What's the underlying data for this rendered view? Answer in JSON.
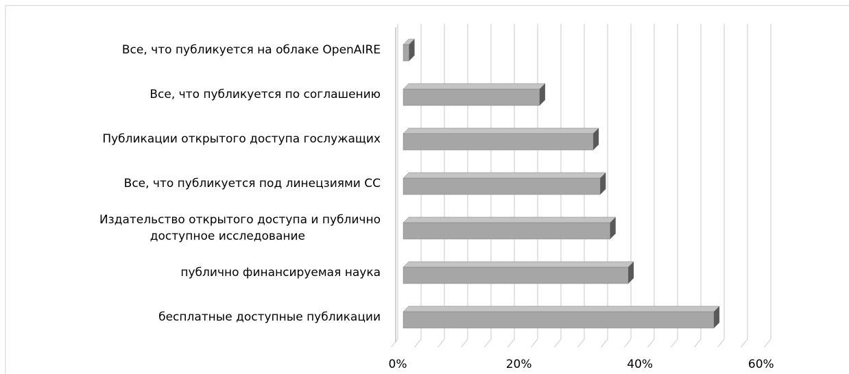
{
  "chart_data": {
    "type": "bar",
    "orientation": "horizontal",
    "categories": [
      "Все, что публикуется на облаке OpenAIRE",
      "Все,  что публикуется по соглашению",
      "Публикации  открытого доступа гослужащих",
      "Все, что публикуется под линецзиями СС",
      "Издательство открытого доступа и публично\nдоступное исследование",
      "публично финансируемая наука",
      "бесплатные доступные публикации"
    ],
    "values": [
      1,
      23.4,
      32.6,
      33.8,
      35.5,
      38.6,
      53.3
    ],
    "color": "#a6a6a6",
    "xlim": [
      0,
      64
    ],
    "xticks": [
      {
        "value": 0,
        "label": "0%"
      },
      {
        "value": 20,
        "label": "20%"
      },
      {
        "value": 40,
        "label": "40%"
      },
      {
        "value": 60,
        "label": "60%"
      }
    ],
    "xgrid": [
      0,
      4,
      8,
      12,
      16,
      20,
      24,
      28,
      32,
      36,
      40,
      44,
      48,
      52,
      56,
      60,
      64
    ],
    "grid": true
  }
}
